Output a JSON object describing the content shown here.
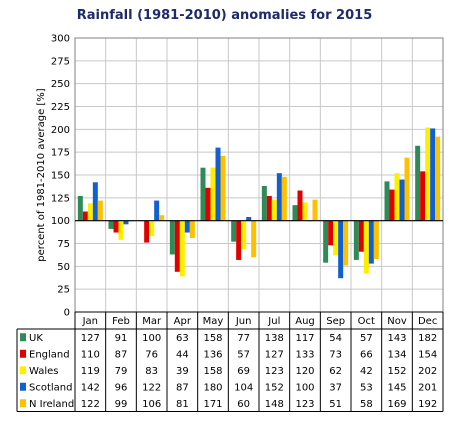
{
  "chart_data": {
    "type": "bar",
    "title": "Rainfall (1981-2010) anomalies for 2015",
    "ylabel": "percent of 1981-2010 average [%]",
    "xlabel": "",
    "ylim": [
      0,
      300
    ],
    "yticks": [
      0,
      25,
      50,
      75,
      100,
      125,
      150,
      175,
      200,
      225,
      250,
      275,
      300
    ],
    "baseline": 100,
    "categories": [
      "Jan",
      "Feb",
      "Mar",
      "Apr",
      "May",
      "Jun",
      "Jul",
      "Aug",
      "Sep",
      "Oct",
      "Nov",
      "Dec"
    ],
    "series": [
      {
        "name": "UK",
        "color": "#2e8b57",
        "values": [
          127,
          91,
          100,
          63,
          158,
          77,
          138,
          117,
          54,
          57,
          143,
          182
        ]
      },
      {
        "name": "England",
        "color": "#e00000",
        "values": [
          110,
          87,
          76,
          44,
          136,
          57,
          127,
          133,
          73,
          66,
          134,
          154
        ]
      },
      {
        "name": "Wales",
        "color": "#ffee00",
        "values": [
          119,
          79,
          83,
          39,
          158,
          69,
          123,
          120,
          62,
          42,
          152,
          202
        ]
      },
      {
        "name": "Scotland",
        "color": "#1060d0",
        "values": [
          142,
          96,
          122,
          87,
          180,
          104,
          152,
          100,
          37,
          53,
          145,
          201
        ]
      },
      {
        "name": "N Ireland",
        "color": "#ffc000",
        "values": [
          122,
          99,
          106,
          81,
          171,
          60,
          148,
          123,
          51,
          58,
          169,
          192
        ]
      }
    ],
    "grid": true,
    "legend": "table-below"
  }
}
